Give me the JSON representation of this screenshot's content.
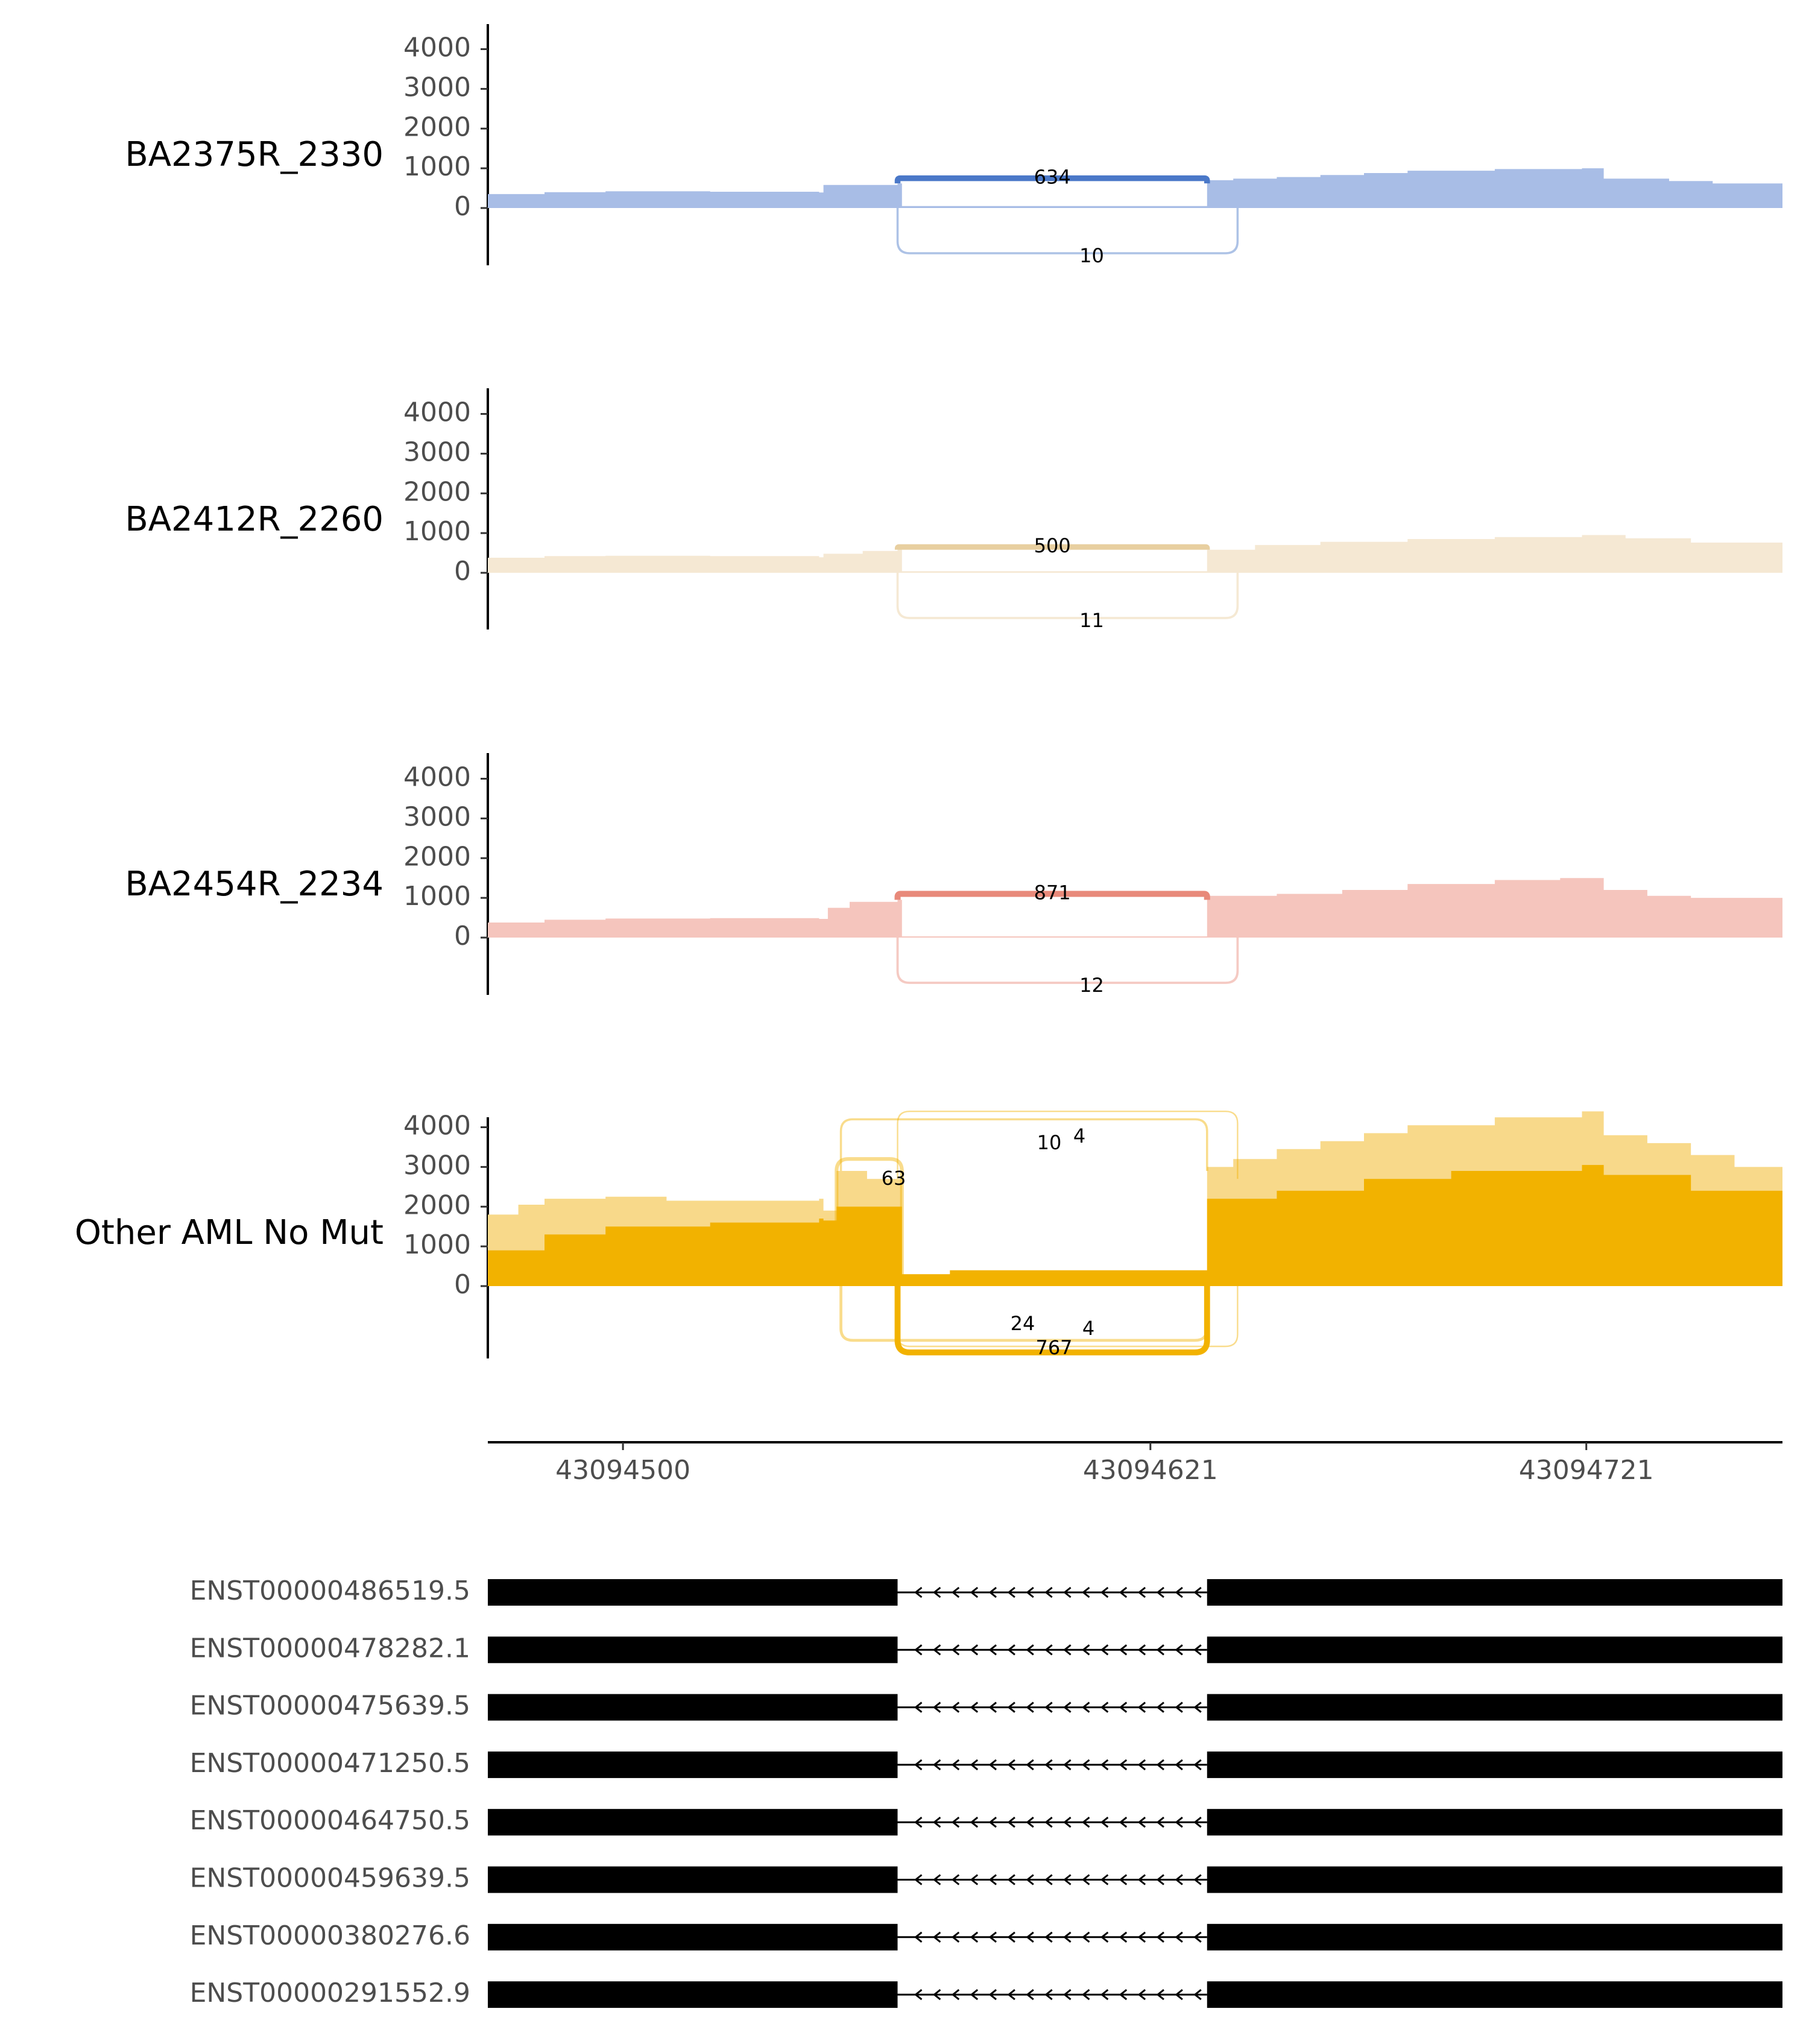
{
  "chart_data": {
    "type": "sashimi",
    "x_axis": {
      "ticks": [
        43094500,
        43094621,
        43094721
      ],
      "tick_labels": [
        "43094500",
        "43094621",
        "43094721"
      ],
      "xlim": [
        43094469,
        43094766
      ]
    },
    "y_axis": {
      "ticks": [
        0,
        1000,
        2000,
        3000,
        4000
      ],
      "tick_labels": [
        "0",
        "1000",
        "2000",
        "3000",
        "4000"
      ]
    },
    "exons": [
      [
        43094469,
        43094563
      ],
      [
        43094634,
        43094766
      ]
    ],
    "tracks": [
      {
        "name": "BA2375R_2330",
        "color": "#4a78c8",
        "fill_color": "#a8bde6",
        "coverage": [
          [
            43094469,
            350
          ],
          [
            43094482,
            400
          ],
          [
            43094496,
            420
          ],
          [
            43094520,
            410
          ],
          [
            43094545,
            390
          ],
          [
            43094546,
            580
          ],
          [
            43094563,
            620
          ],
          [
            43094564,
            50
          ],
          [
            43094634,
            700
          ],
          [
            43094640,
            740
          ],
          [
            43094650,
            780
          ],
          [
            43094660,
            830
          ],
          [
            43094670,
            880
          ],
          [
            43094680,
            940
          ],
          [
            43094700,
            980
          ],
          [
            43094720,
            1000
          ],
          [
            43094725,
            740
          ],
          [
            43094740,
            680
          ],
          [
            43094750,
            620
          ],
          [
            43094766,
            600
          ]
        ],
        "overlay": [],
        "junctions": [
          {
            "label": "634",
            "value": 634,
            "side": "top",
            "from": 43094563,
            "to": 43094634
          },
          {
            "label": "10",
            "value": 10,
            "side": "bottom",
            "from": 43094563,
            "to": 43094641
          }
        ]
      },
      {
        "name": "BA2412R_2260",
        "color": "#e8cfa0",
        "fill_color": "#f5e8d3",
        "coverage": [
          [
            43094469,
            380
          ],
          [
            43094482,
            420
          ],
          [
            43094496,
            430
          ],
          [
            43094520,
            420
          ],
          [
            43094545,
            390
          ],
          [
            43094546,
            480
          ],
          [
            43094555,
            550
          ],
          [
            43094563,
            600
          ],
          [
            43094564,
            40
          ],
          [
            43094634,
            580
          ],
          [
            43094645,
            700
          ],
          [
            43094660,
            780
          ],
          [
            43094680,
            850
          ],
          [
            43094700,
            900
          ],
          [
            43094720,
            950
          ],
          [
            43094730,
            870
          ],
          [
            43094745,
            760
          ],
          [
            43094766,
            700
          ]
        ],
        "overlay": [],
        "junctions": [
          {
            "label": "500",
            "value": 500,
            "side": "top",
            "from": 43094563,
            "to": 43094634
          },
          {
            "label": "11",
            "value": 11,
            "side": "bottom",
            "from": 43094563,
            "to": 43094641
          }
        ]
      },
      {
        "name": "BA2454R_2234",
        "color": "#e8897a",
        "fill_color": "#f5c5bd",
        "coverage": [
          [
            43094469,
            380
          ],
          [
            43094482,
            450
          ],
          [
            43094496,
            480
          ],
          [
            43094520,
            490
          ],
          [
            43094545,
            470
          ],
          [
            43094547,
            750
          ],
          [
            43094552,
            900
          ],
          [
            43094563,
            950
          ],
          [
            43094564,
            30
          ],
          [
            43094634,
            1050
          ],
          [
            43094650,
            1100
          ],
          [
            43094665,
            1200
          ],
          [
            43094680,
            1350
          ],
          [
            43094700,
            1450
          ],
          [
            43094715,
            1500
          ],
          [
            43094725,
            1200
          ],
          [
            43094735,
            1050
          ],
          [
            43094745,
            1000
          ],
          [
            43094766,
            900
          ]
        ],
        "overlay": [],
        "junctions": [
          {
            "label": "871",
            "value": 871,
            "side": "top",
            "from": 43094563,
            "to": 43094634
          },
          {
            "label": "12",
            "value": 12,
            "side": "bottom",
            "from": 43094563,
            "to": 43094641
          }
        ]
      },
      {
        "name": "Other AML No Mut",
        "color": "#f2b200",
        "fill_color": "#f8d98a",
        "coverage": [
          [
            43094469,
            1800
          ],
          [
            43094476,
            2050
          ],
          [
            43094482,
            2200
          ],
          [
            43094496,
            2250
          ],
          [
            43094510,
            2150
          ],
          [
            43094545,
            2200
          ],
          [
            43094546,
            1900
          ],
          [
            43094549,
            2900
          ],
          [
            43094556,
            2700
          ],
          [
            43094563,
            2700
          ],
          [
            43094564,
            150
          ],
          [
            43094575,
            300
          ],
          [
            43094634,
            3000
          ],
          [
            43094640,
            3200
          ],
          [
            43094650,
            3450
          ],
          [
            43094660,
            3650
          ],
          [
            43094670,
            3850
          ],
          [
            43094680,
            4050
          ],
          [
            43094700,
            4250
          ],
          [
            43094720,
            4400
          ],
          [
            43094725,
            3800
          ],
          [
            43094735,
            3600
          ],
          [
            43094745,
            3300
          ],
          [
            43094755,
            3000
          ],
          [
            43094766,
            2800
          ]
        ],
        "overlay": [
          [
            43094469,
            900
          ],
          [
            43094482,
            1300
          ],
          [
            43094496,
            1500
          ],
          [
            43094520,
            1600
          ],
          [
            43094545,
            1700
          ],
          [
            43094546,
            1650
          ],
          [
            43094549,
            2000
          ],
          [
            43094556,
            2000
          ],
          [
            43094563,
            2000
          ],
          [
            43094564,
            300
          ],
          [
            43094575,
            400
          ],
          [
            43094634,
            2200
          ],
          [
            43094650,
            2400
          ],
          [
            43094670,
            2700
          ],
          [
            43094690,
            2900
          ],
          [
            43094720,
            3050
          ],
          [
            43094725,
            2800
          ],
          [
            43094745,
            2400
          ],
          [
            43094766,
            2250
          ]
        ],
        "junctions": [
          {
            "label": "10",
            "value": 10,
            "side": "top",
            "from": 43094550,
            "to": 43094634
          },
          {
            "label": "4",
            "value": 4,
            "side": "top",
            "from": 43094563,
            "to": 43094641
          },
          {
            "label": "63",
            "value": 63,
            "side": "top",
            "from": 43094549,
            "to": 43094564
          },
          {
            "label": "24",
            "value": 24,
            "side": "bottom",
            "from": 43094550,
            "to": 43094634
          },
          {
            "label": "4",
            "value": 4,
            "side": "bottom",
            "from": 43094563,
            "to": 43094641
          },
          {
            "label": "767",
            "value": 767,
            "side": "bottom",
            "from": 43094563,
            "to": 43094634
          }
        ]
      }
    ],
    "transcripts": [
      "ENST00000486519.5",
      "ENST00000478282.1",
      "ENST00000475639.5",
      "ENST00000471250.5",
      "ENST00000464750.5",
      "ENST00000459639.5",
      "ENST00000380276.6",
      "ENST00000291552.9"
    ],
    "strand": "-"
  }
}
